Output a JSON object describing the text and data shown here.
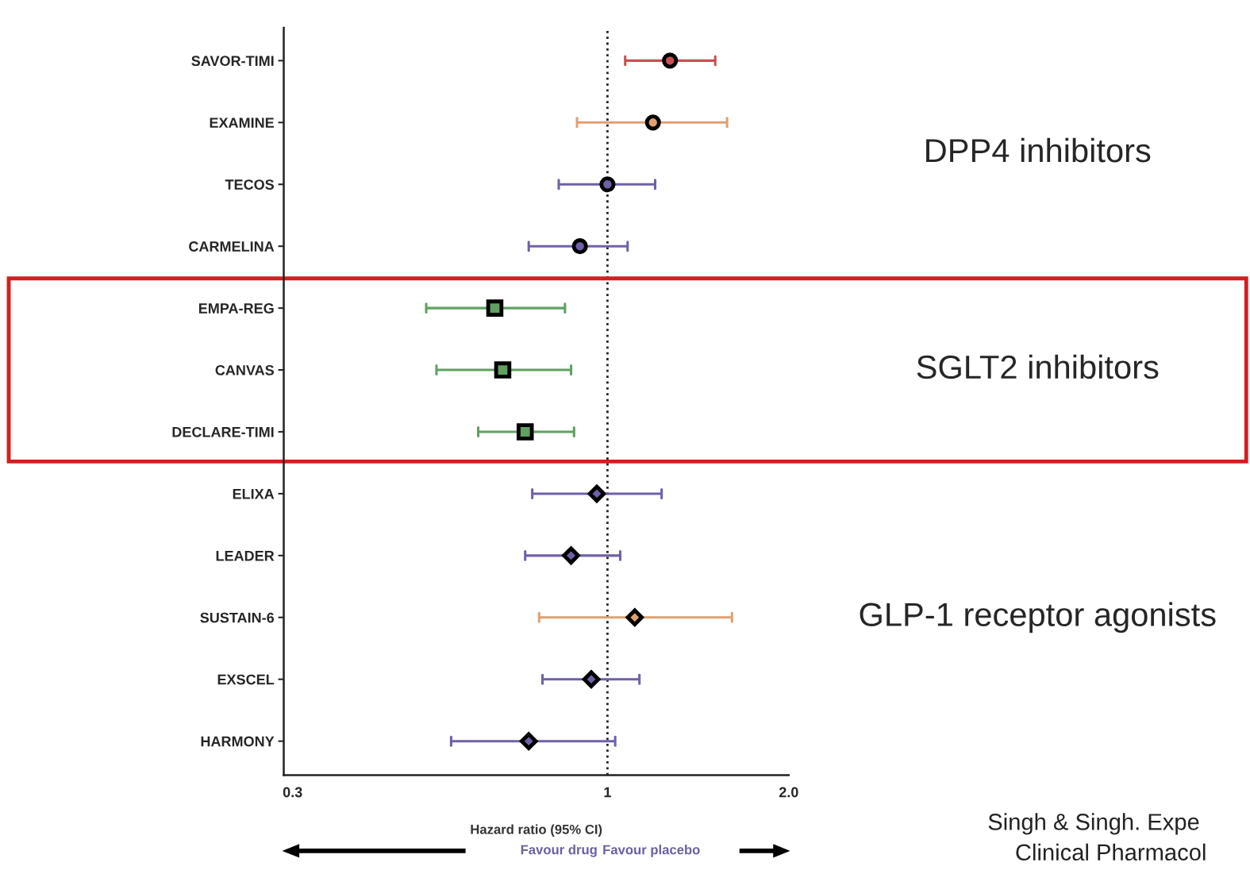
{
  "chart_data": {
    "type": "scatter",
    "orientation": "horizontal",
    "categories": [
      "SAVOR-TIMI",
      "EXAMINE",
      "TECOS",
      "CARMELINA",
      "EMPA-REG",
      "CANVAS",
      "DECLARE-TIMI",
      "ELIXA",
      "LEADER",
      "SUSTAIN-6",
      "EXSCEL",
      "HARMONY"
    ],
    "xlabel": "Hazard ratio (95% CI)",
    "log": "x",
    "xlim": [
      0.29,
      2.0
    ],
    "xticks": [
      0.3,
      1,
      {
        "value": 2.0,
        "label": "2.0"
      }
    ],
    "series": [
      {
        "name": "DPP4 inhibitors",
        "marker": "circle",
        "color": "#000000",
        "colors": [
          "#c85050",
          "#e0a070",
          "#7060a8",
          "#7060a8",
          null,
          null,
          null,
          null,
          null,
          null,
          null,
          null
        ],
        "values": [
          1.27,
          1.19,
          1.0,
          0.9,
          null,
          null,
          null,
          null,
          null,
          null,
          null,
          null
        ],
        "errors": [
          [
            1.07,
            1.51
          ],
          [
            0.89,
            1.58
          ],
          [
            0.83,
            1.2
          ],
          [
            0.74,
            1.08
          ],
          null,
          null,
          null,
          null,
          null,
          null,
          null,
          null
        ]
      },
      {
        "name": "SGLT2 inhibitors",
        "marker": "square",
        "color": "#000000",
        "colors": [
          null,
          null,
          null,
          null,
          "#60a060",
          "#60a060",
          "#60a060",
          null,
          null,
          null,
          null,
          null
        ],
        "values": [
          null,
          null,
          null,
          null,
          0.65,
          0.67,
          0.73,
          null,
          null,
          null,
          null,
          null
        ],
        "errors": [
          null,
          null,
          null,
          null,
          [
            0.5,
            0.85
          ],
          [
            0.52,
            0.87
          ],
          [
            0.61,
            0.88
          ],
          null,
          null,
          null,
          null,
          null
        ]
      },
      {
        "name": "GLP-1 receptor agonists",
        "marker": "diamond",
        "color": "#000000",
        "colors": [
          null,
          null,
          null,
          null,
          null,
          null,
          null,
          "#7060a8",
          "#7060a8",
          "#e0a070",
          "#7060a8",
          "#7060a8"
        ],
        "values": [
          null,
          null,
          null,
          null,
          null,
          null,
          null,
          0.96,
          0.87,
          1.11,
          0.94,
          0.74
        ],
        "errors": [
          null,
          null,
          null,
          null,
          null,
          null,
          null,
          [
            0.75,
            1.23
          ],
          [
            0.73,
            1.05
          ],
          [
            0.77,
            1.61
          ],
          [
            0.78,
            1.13
          ],
          [
            0.55,
            1.03
          ]
        ]
      }
    ],
    "ref_lines": [
      {
        "axis": "x",
        "value": 1,
        "color": "#222222",
        "line_style": "dotted"
      }
    ],
    "annotations": [
      "Favour drug",
      "Favour placebo",
      "Singh & Singh. Expe",
      "Clinical Pharmacol"
    ],
    "grid": false,
    "legend": false
  }
}
